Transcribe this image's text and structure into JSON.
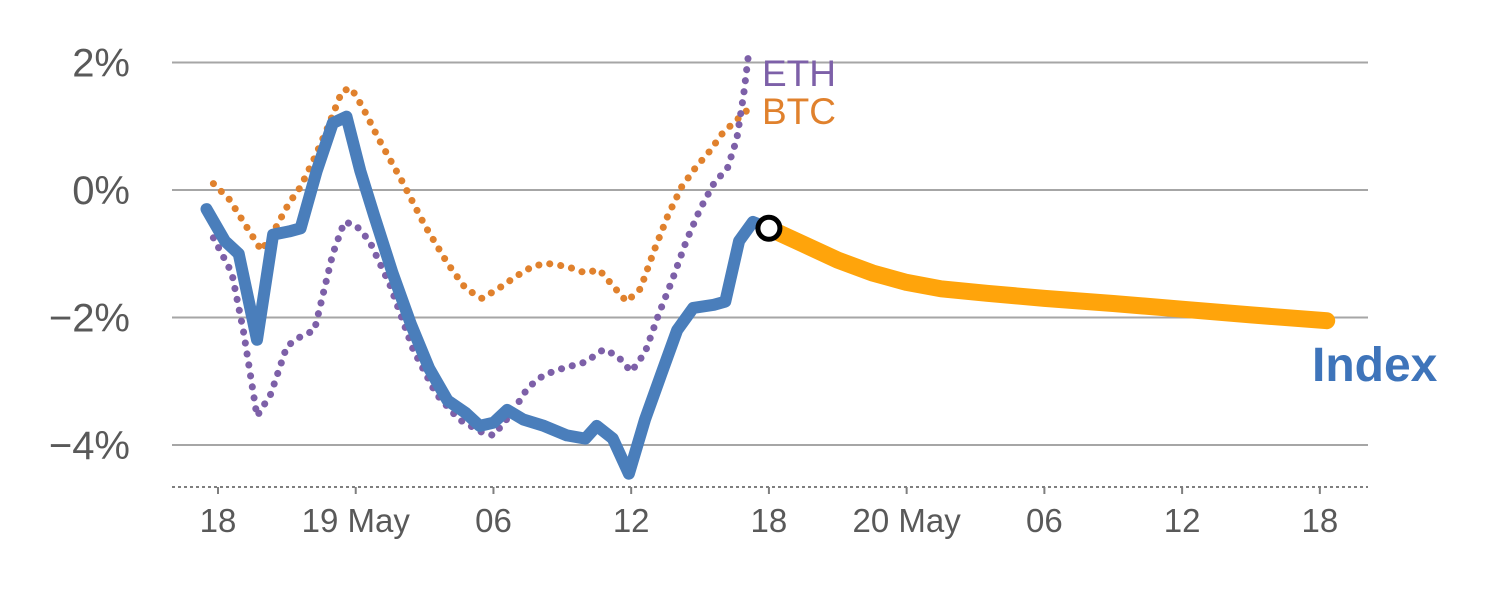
{
  "chart_data": {
    "type": "line",
    "title": "",
    "xlabel": "",
    "ylabel": "",
    "x_unit": "hours",
    "ylim": [
      -4.7,
      2.2
    ],
    "xlim": [
      -1,
      50
    ],
    "grid": "horizontal",
    "axis_color": "#595959",
    "gridline_color": "#a6a6a6",
    "bottom_axis_color": "#7f7f7f",
    "y_ticks": [
      {
        "value": 2,
        "label": "2%"
      },
      {
        "value": 0,
        "label": "0%"
      },
      {
        "value": -2,
        "label": "−2%"
      },
      {
        "value": -4,
        "label": "−4%"
      }
    ],
    "x_ticks": [
      {
        "hour": 0,
        "label": "18"
      },
      {
        "hour": 6,
        "label": "19 May"
      },
      {
        "hour": 12,
        "label": "06"
      },
      {
        "hour": 18,
        "label": "12"
      },
      {
        "hour": 24,
        "label": "18"
      },
      {
        "hour": 30,
        "label": "20 May"
      },
      {
        "hour": 36,
        "label": "06"
      },
      {
        "hour": 42,
        "label": "12"
      },
      {
        "hour": 48,
        "label": "18"
      }
    ],
    "labels": {
      "eth": "ETH",
      "btc": "BTC",
      "index": "Index"
    },
    "series": [
      {
        "name": "BTC",
        "color": "#e0812d",
        "style": "dotted",
        "width": 7,
        "points": [
          [
            -0.2,
            0.1
          ],
          [
            0.5,
            -0.15
          ],
          [
            1.2,
            -0.55
          ],
          [
            1.9,
            -0.95
          ],
          [
            2.5,
            -0.6
          ],
          [
            3.1,
            -0.2
          ],
          [
            3.6,
            0.05
          ],
          [
            4.2,
            0.5
          ],
          [
            4.8,
            1.0
          ],
          [
            5.4,
            1.55
          ],
          [
            5.8,
            1.6
          ],
          [
            6.3,
            1.3
          ],
          [
            7.0,
            0.8
          ],
          [
            8.0,
            0.15
          ],
          [
            9.0,
            -0.55
          ],
          [
            10.0,
            -1.15
          ],
          [
            10.8,
            -1.55
          ],
          [
            11.5,
            -1.7
          ],
          [
            12.2,
            -1.55
          ],
          [
            13.0,
            -1.35
          ],
          [
            13.7,
            -1.2
          ],
          [
            14.3,
            -1.15
          ],
          [
            15.2,
            -1.2
          ],
          [
            16.0,
            -1.3
          ],
          [
            16.6,
            -1.25
          ],
          [
            17.2,
            -1.5
          ],
          [
            17.8,
            -1.75
          ],
          [
            18.4,
            -1.55
          ],
          [
            19.0,
            -0.95
          ],
          [
            19.6,
            -0.4
          ],
          [
            20.2,
            0.05
          ],
          [
            20.8,
            0.35
          ],
          [
            21.4,
            0.6
          ],
          [
            22.0,
            0.9
          ],
          [
            22.6,
            1.1
          ],
          [
            23.2,
            1.3
          ]
        ]
      },
      {
        "name": "ETH",
        "color": "#7d60a8",
        "style": "dotted",
        "width": 7,
        "points": [
          [
            -0.2,
            -0.75
          ],
          [
            0.6,
            -1.3
          ],
          [
            1.1,
            -2.2
          ],
          [
            1.7,
            -3.55
          ],
          [
            2.3,
            -3.2
          ],
          [
            3.0,
            -2.45
          ],
          [
            3.6,
            -2.3
          ],
          [
            4.2,
            -2.2
          ],
          [
            5.0,
            -1.0
          ],
          [
            5.5,
            -0.5
          ],
          [
            6.0,
            -0.55
          ],
          [
            6.6,
            -0.8
          ],
          [
            7.5,
            -1.5
          ],
          [
            8.5,
            -2.5
          ],
          [
            9.5,
            -3.2
          ],
          [
            10.5,
            -3.6
          ],
          [
            11.5,
            -3.8
          ],
          [
            12.0,
            -3.85
          ],
          [
            12.8,
            -3.5
          ],
          [
            13.5,
            -3.1
          ],
          [
            14.2,
            -2.9
          ],
          [
            15.0,
            -2.8
          ],
          [
            16.0,
            -2.7
          ],
          [
            16.8,
            -2.5
          ],
          [
            17.4,
            -2.6
          ],
          [
            18.0,
            -2.85
          ],
          [
            18.6,
            -2.55
          ],
          [
            19.2,
            -1.95
          ],
          [
            19.8,
            -1.4
          ],
          [
            20.4,
            -0.8
          ],
          [
            21.0,
            -0.3
          ],
          [
            21.6,
            0.1
          ],
          [
            22.2,
            0.35
          ],
          [
            22.6,
            0.8
          ],
          [
            22.9,
            1.5
          ],
          [
            23.1,
            2.1
          ]
        ]
      },
      {
        "name": "Index",
        "color": "#4a7ebb",
        "style": "solid",
        "width": 12,
        "points": [
          [
            -0.5,
            -0.3
          ],
          [
            0.3,
            -0.8
          ],
          [
            0.9,
            -1.0
          ],
          [
            1.7,
            -2.35
          ],
          [
            2.4,
            -0.7
          ],
          [
            3.1,
            -0.65
          ],
          [
            3.6,
            -0.6
          ],
          [
            4.3,
            0.3
          ],
          [
            5.0,
            1.05
          ],
          [
            5.6,
            1.15
          ],
          [
            6.2,
            0.3
          ],
          [
            6.8,
            -0.4
          ],
          [
            7.6,
            -1.3
          ],
          [
            8.4,
            -2.1
          ],
          [
            9.2,
            -2.8
          ],
          [
            10.0,
            -3.3
          ],
          [
            10.8,
            -3.5
          ],
          [
            11.4,
            -3.7
          ],
          [
            12.0,
            -3.65
          ],
          [
            12.6,
            -3.45
          ],
          [
            13.3,
            -3.6
          ],
          [
            14.2,
            -3.7
          ],
          [
            15.2,
            -3.85
          ],
          [
            16.0,
            -3.9
          ],
          [
            16.5,
            -3.7
          ],
          [
            17.2,
            -3.9
          ],
          [
            17.9,
            -4.45
          ],
          [
            18.6,
            -3.6
          ],
          [
            19.3,
            -2.9
          ],
          [
            20.0,
            -2.2
          ],
          [
            20.7,
            -1.85
          ],
          [
            21.6,
            -1.8
          ],
          [
            22.1,
            -1.75
          ],
          [
            22.7,
            -0.8
          ],
          [
            23.3,
            -0.5
          ],
          [
            24.0,
            -0.6
          ]
        ]
      },
      {
        "name": "Index forecast",
        "color": "#ffa40b",
        "style": "solid",
        "width": 17,
        "points": [
          [
            24.0,
            -0.6
          ],
          [
            25.5,
            -0.85
          ],
          [
            27.0,
            -1.1
          ],
          [
            28.5,
            -1.3
          ],
          [
            30.0,
            -1.45
          ],
          [
            31.5,
            -1.55
          ],
          [
            33.5,
            -1.62
          ],
          [
            36.0,
            -1.7
          ],
          [
            39.0,
            -1.78
          ],
          [
            42.0,
            -1.87
          ],
          [
            45.0,
            -1.96
          ],
          [
            48.3,
            -2.05
          ]
        ]
      }
    ],
    "marker": {
      "hour": 24,
      "value": -0.6,
      "shape": "circle",
      "radius": 11,
      "fill": "#ffffff",
      "stroke": "#000000",
      "stroke_width": 5
    }
  }
}
